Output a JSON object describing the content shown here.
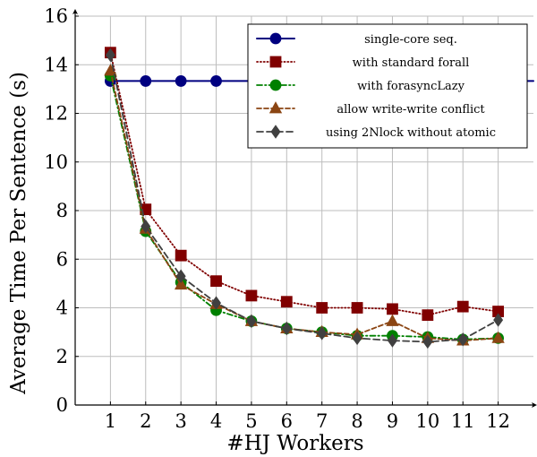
{
  "chart_data": {
    "type": "line",
    "xlabel": "#HJ Workers",
    "ylabel": "Average Time Per Sentence (s)",
    "x": [
      1,
      2,
      3,
      4,
      5,
      6,
      7,
      8,
      9,
      10,
      11,
      12
    ],
    "xlim": [
      0,
      13
    ],
    "ylim": [
      0,
      16
    ],
    "xticks": [
      1,
      2,
      3,
      4,
      5,
      6,
      7,
      8,
      9,
      10,
      11,
      12
    ],
    "yticks": [
      0,
      2,
      4,
      6,
      8,
      10,
      12,
      14,
      16
    ],
    "grid": true,
    "legend_position": "top-right",
    "series": [
      {
        "name": "single-core seq.",
        "color": "#000080",
        "dash": "solid",
        "marker": "circle",
        "x": [
          1,
          2,
          3,
          4
        ],
        "values": [
          13.33,
          13.33,
          13.33,
          13.33
        ],
        "extends_to_x": 13
      },
      {
        "name": "with standard forall",
        "color": "#800000",
        "dash": "dotted",
        "marker": "square",
        "x": [
          1,
          2,
          3,
          4,
          5,
          6,
          7,
          8,
          9,
          10,
          11,
          12
        ],
        "values": [
          14.5,
          8.05,
          6.15,
          5.1,
          4.5,
          4.25,
          4.0,
          4.0,
          3.95,
          3.7,
          4.05,
          3.85
        ]
      },
      {
        "name": "with forasyncLazy",
        "color": "#008000",
        "dash": "dashdot",
        "marker": "circle",
        "x": [
          1,
          2,
          3,
          4,
          5,
          6,
          7,
          8,
          9,
          10,
          11,
          12
        ],
        "values": [
          13.55,
          7.15,
          5.05,
          3.9,
          3.45,
          3.15,
          3.0,
          2.85,
          2.85,
          2.8,
          2.7,
          2.75
        ]
      },
      {
        "name": "allow write-write conflict",
        "color": "#8b4513",
        "dash": "dashed",
        "marker": "triangle",
        "x": [
          1,
          2,
          3,
          4,
          5,
          6,
          7,
          8,
          9,
          10,
          11,
          12
        ],
        "values": [
          13.75,
          7.25,
          4.95,
          4.15,
          3.45,
          3.15,
          3.0,
          2.9,
          3.45,
          2.75,
          2.65,
          2.75
        ]
      },
      {
        "name": "using 2Nlock without atomic",
        "color": "#404040",
        "dash": "longdash",
        "marker": "diamond",
        "x": [
          1,
          2,
          3,
          4,
          5,
          6,
          7,
          8,
          9,
          10,
          11,
          12
        ],
        "values": [
          14.4,
          7.35,
          5.3,
          4.2,
          3.45,
          3.15,
          2.95,
          2.75,
          2.65,
          2.6,
          2.7,
          3.5
        ]
      }
    ]
  }
}
